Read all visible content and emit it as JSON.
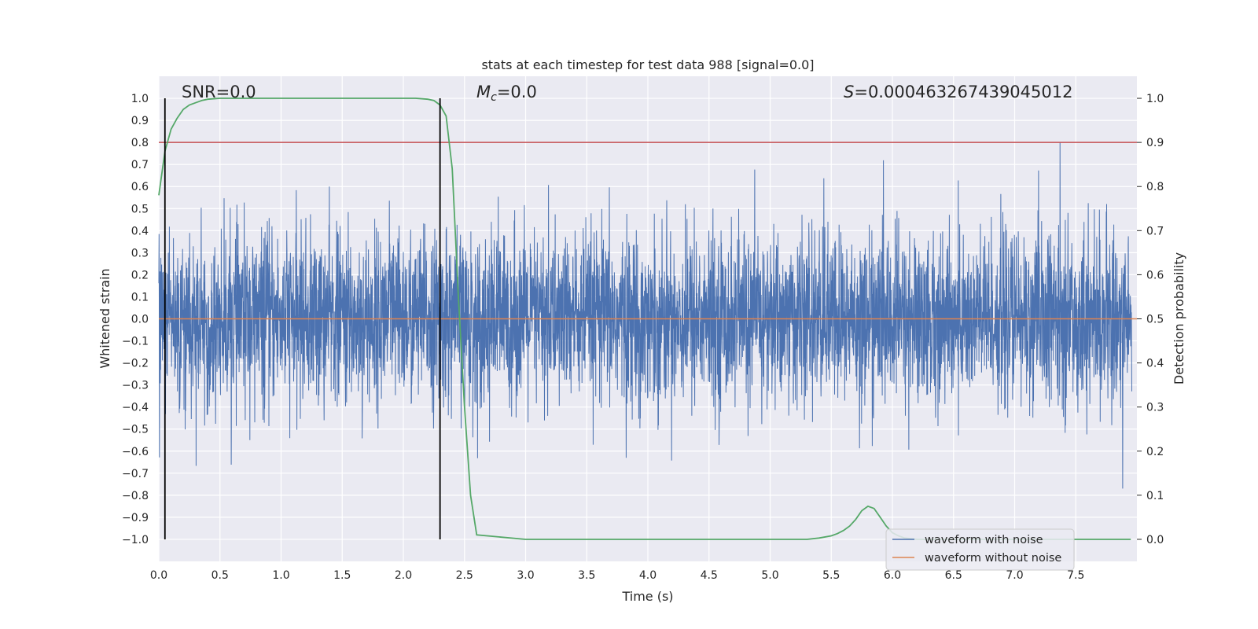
{
  "chart_data": {
    "type": "line",
    "title": "stats at each timestep for test data 988 [signal=0.0]",
    "xlabel": "Time (s)",
    "ylabel": "Whitened strain",
    "y2label": "Detection probability",
    "xlim": [
      0.0,
      8.0
    ],
    "ylim": [
      -1.1,
      1.1
    ],
    "y2lim": [
      -0.05,
      1.05
    ],
    "x_ticks": [
      "0.0",
      "0.5",
      "1.0",
      "1.5",
      "2.0",
      "2.5",
      "3.0",
      "3.5",
      "4.0",
      "4.5",
      "5.0",
      "5.5",
      "6.0",
      "6.5",
      "7.0",
      "7.5"
    ],
    "y_ticks": [
      "1.0",
      "0.9",
      "0.8",
      "0.7",
      "0.6",
      "0.5",
      "0.4",
      "0.3",
      "0.2",
      "0.1",
      "0.0",
      "−0.1",
      "−0.2",
      "−0.3",
      "−0.4",
      "−0.5",
      "−0.6",
      "−0.7",
      "−0.8",
      "−0.9",
      "−1.0"
    ],
    "y2_ticks": [
      "1.0",
      "0.9",
      "0.8",
      "0.7",
      "0.6",
      "0.5",
      "0.4",
      "0.3",
      "0.2",
      "0.1",
      "0.0"
    ],
    "annotations": {
      "snr": "SNR=0.0",
      "mc_symbol": "M",
      "mc_sub": "c",
      "mc_value": "=0.0",
      "s_symbol": "S",
      "s_value": "=0.000463267439045012"
    },
    "legend": {
      "location": "lower-right",
      "entries": [
        {
          "label": "waveform with noise",
          "color": "#4c72b0"
        },
        {
          "label": "waveform without noise",
          "color": "#dd8452"
        }
      ]
    },
    "series": [
      {
        "name": "waveform with noise",
        "color": "#4c72b0",
        "axis": "left",
        "description_values": "noise in roughly [-0.8, 0.8] with occasional spikes",
        "x_range": [
          0.0,
          8.0
        ],
        "noise_envelope": 0.8
      },
      {
        "name": "waveform without noise",
        "color": "#dd8452",
        "axis": "left",
        "x": [
          0.0,
          8.0
        ],
        "values": [
          0.0,
          0.0
        ]
      },
      {
        "name": "detection probability",
        "color": "#55a868",
        "axis": "right",
        "x": [
          0.0,
          0.05,
          0.1,
          0.15,
          0.2,
          0.25,
          0.3,
          0.35,
          0.4,
          0.5,
          1.0,
          1.5,
          2.0,
          2.1,
          2.2,
          2.25,
          2.3,
          2.35,
          2.4,
          2.45,
          2.5,
          2.55,
          2.6,
          3.0,
          4.0,
          5.0,
          5.3,
          5.4,
          5.5,
          5.55,
          5.6,
          5.65,
          5.7,
          5.75,
          5.8,
          5.85,
          5.9,
          5.95,
          6.0,
          6.05,
          6.1,
          6.2,
          6.5,
          7.0,
          7.5,
          7.95
        ],
        "values": [
          0.78,
          0.88,
          0.93,
          0.955,
          0.975,
          0.985,
          0.99,
          0.995,
          0.998,
          1.0,
          1.0,
          1.0,
          1.0,
          1.0,
          0.998,
          0.995,
          0.985,
          0.96,
          0.84,
          0.55,
          0.3,
          0.1,
          0.01,
          0.0,
          0.0,
          0.0,
          0.0,
          0.003,
          0.008,
          0.013,
          0.02,
          0.03,
          0.045,
          0.065,
          0.075,
          0.07,
          0.05,
          0.03,
          0.015,
          0.008,
          0.003,
          0.0,
          0.0,
          0.0,
          0.0,
          0.0
        ]
      }
    ],
    "threshold": {
      "name": "detection threshold",
      "color": "#c44e52",
      "axis": "right",
      "value": 0.9
    },
    "vertical_lines": [
      {
        "name": "event-start",
        "x": 0.05,
        "color": "#000000"
      },
      {
        "name": "event-end",
        "x": 2.3,
        "color": "#000000"
      }
    ],
    "grid": true,
    "background": "#eaeaf2"
  }
}
